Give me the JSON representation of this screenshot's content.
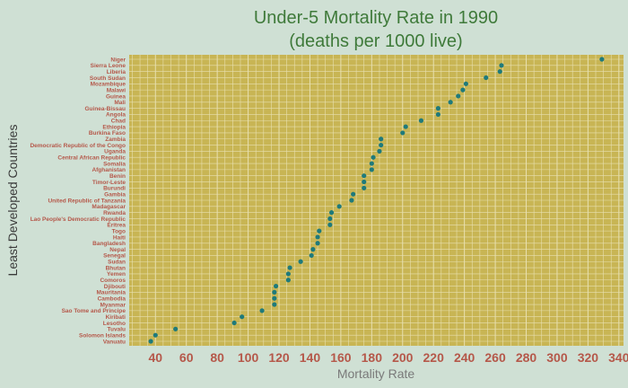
{
  "chart_data": {
    "type": "scatter",
    "title_line1": "Under-5 Mortality Rate in 1990",
    "title_line2": "(deaths per 1000 live)",
    "xlabel": "Mortality Rate",
    "ylabel": "Least Developed Countries",
    "xlim": [
      23,
      343
    ],
    "xticks": [
      40,
      60,
      80,
      100,
      120,
      140,
      160,
      180,
      200,
      220,
      240,
      260,
      280,
      300,
      320,
      340
    ],
    "grid": true,
    "colors": {
      "background": "#cfe0d4",
      "plot_bg": "#c8b554",
      "grid": "#e8e0b0",
      "point": "#1f7a7a",
      "label": "#b5584a",
      "title": "#3f7a3a"
    },
    "categories": [
      "Niger",
      "Sierra Leone",
      "Liberia",
      "South Sudan",
      "Mozambique",
      "Malawi",
      "Guinea",
      "Mali",
      "Guinea-Bissau",
      "Angola",
      "Chad",
      "Ethiopia",
      "Burkina Faso",
      "Zambia",
      "Democratic Republic of the Congo",
      "Uganda",
      "Central African Republic",
      "Somalia",
      "Afghanistan",
      "Benin",
      "Timor-Leste",
      "Burundi",
      "Gambia",
      "United Republic of Tanzania",
      "Madagascar",
      "Rwanda",
      "Lao People's Democratic Republic",
      "Eritrea",
      "Togo",
      "Haiti",
      "Bangladesh",
      "Nepal",
      "Senegal",
      "Sudan",
      "Bhutan",
      "Yemen",
      "Comoros",
      "Djibouti",
      "Mauritania",
      "Cambodia",
      "Myanmar",
      "Sao Tome and Principe",
      "Kiribati",
      "Lesotho",
      "Tuvalu",
      "Solomon Islands",
      "Vanuatu"
    ],
    "values": [
      329,
      264,
      263,
      254,
      241,
      239,
      236,
      231,
      223,
      223,
      212,
      202,
      200,
      186,
      186,
      185,
      181,
      180,
      180,
      175,
      175,
      175,
      168,
      167,
      159,
      154,
      153,
      153,
      146,
      145,
      145,
      142,
      141,
      134,
      127,
      126,
      126,
      118,
      117,
      117,
      117,
      109,
      96,
      91,
      53,
      40,
      37
    ]
  }
}
